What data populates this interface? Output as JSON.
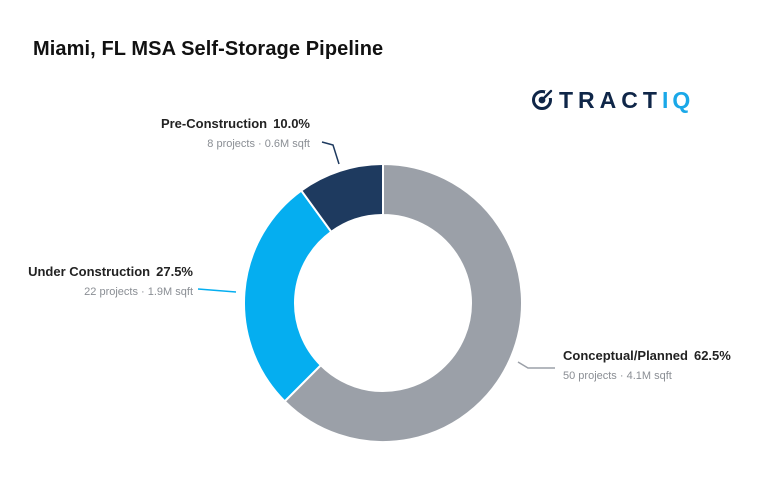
{
  "title": "Miami, FL MSA Self-Storage Pipeline",
  "brand": {
    "logo_text_main": "TRACT",
    "logo_text_accent": "IQ",
    "icon": "tractiq-target-icon",
    "color_main": "#0f2648",
    "color_accent": "#1aa8e8"
  },
  "chart_data": {
    "type": "pie",
    "variant": "donut",
    "title": "Miami, FL MSA Self-Storage Pipeline",
    "slices": [
      {
        "name": "Conceptual/Planned",
        "percent_label": "62.5%",
        "value": 62.5,
        "projects_label": "50 projects",
        "sqft_label": "4.1M sqft",
        "detail": "50 projects · 4.1M sqft",
        "color": "#9ba0a8"
      },
      {
        "name": "Under Construction",
        "percent_label": "27.5%",
        "value": 27.5,
        "projects_label": "22 projects",
        "sqft_label": "1.9M sqft",
        "detail": "22 projects · 1.9M sqft",
        "color": "#05aef0"
      },
      {
        "name": "Pre-Construction",
        "percent_label": "10.0%",
        "value": 10.0,
        "projects_label": "8 projects",
        "sqft_label": "0.6M sqft",
        "detail": "8 projects · 0.6M sqft",
        "color": "#1e3a5f"
      }
    ]
  }
}
